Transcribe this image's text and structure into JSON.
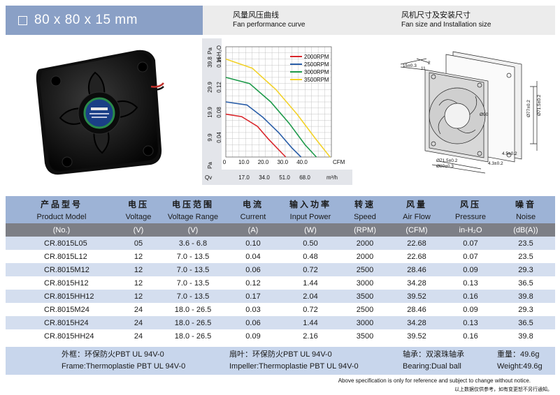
{
  "header": {
    "title": "80 x 80 x 15 mm",
    "curve_cn": "风量风压曲线",
    "curve_en": "Fan performance curve",
    "size_cn": "风机尺寸及安装尺寸",
    "size_en": "Fan size and Installation size"
  },
  "chart_data": {
    "type": "line",
    "xlabel": "CFM",
    "x2label": "m³/h",
    "x2prefix": "Qv",
    "ylabel_left": "Pa",
    "ylabel_right": "in-H₂O",
    "xticks": [
      "0",
      "10.0",
      "20.0",
      "30.0",
      "40.0"
    ],
    "x2ticks": [
      "17.0",
      "34.0",
      "51.0",
      "68.0"
    ],
    "yticks_pa": [
      "9.9",
      "19.9",
      "29.9",
      "39.8"
    ],
    "yticks_h2o": [
      "0.04",
      "0.08",
      "0.12",
      "0.16"
    ],
    "xlim": [
      0,
      40
    ],
    "ylim": [
      0,
      0.18
    ],
    "series": [
      {
        "name": "2000RPM",
        "color": "#d9262b",
        "x": [
          0,
          6,
          12,
          16,
          20,
          22.7
        ],
        "y": [
          0.07,
          0.066,
          0.05,
          0.03,
          0.012,
          0
        ]
      },
      {
        "name": "2500RPM",
        "color": "#2a5ea8",
        "x": [
          0,
          8,
          14,
          20,
          25,
          28.5
        ],
        "y": [
          0.09,
          0.085,
          0.065,
          0.04,
          0.015,
          0
        ]
      },
      {
        "name": "3000RPM",
        "color": "#1d9a4a",
        "x": [
          0,
          9,
          17,
          24,
          30,
          34.3
        ],
        "y": [
          0.13,
          0.12,
          0.09,
          0.055,
          0.02,
          0
        ]
      },
      {
        "name": "3500RPM",
        "color": "#f2d22a",
        "x": [
          0,
          10,
          19,
          27,
          34,
          39.5
        ],
        "y": [
          0.16,
          0.145,
          0.11,
          0.07,
          0.03,
          0
        ]
      }
    ]
  },
  "drawing": {
    "dims": [
      "15±0.3",
      "2",
      "11",
      "Ø90",
      "Ø71.5±0.2",
      "Ø80±0.3",
      "Ø71.5±0.2",
      "Ø77±0.2",
      "4.5±0.2",
      "4.3±0.2"
    ]
  },
  "table": {
    "headers_cn": [
      "产品型号",
      "电压",
      "电压范围",
      "电流",
      "输入功率",
      "转速",
      "风量",
      "风压",
      "噪音"
    ],
    "headers_en": [
      "Product Model",
      "Voltage",
      "Voltage Range",
      "Current",
      "Input Power",
      "Speed",
      "Air Flow",
      "Pressure",
      "Noise"
    ],
    "units": [
      "(No.)",
      "(V)",
      "(V)",
      "(A)",
      "(W)",
      "(RPM)",
      "(CFM)",
      "in-H₂O",
      "(dB(A))"
    ],
    "rows": [
      [
        "CR.8015L05",
        "05",
        "3.6 - 6.8",
        "0.10",
        "0.50",
        "2000",
        "22.68",
        "0.07",
        "23.5"
      ],
      [
        "CR.8015L12",
        "12",
        "7.0 - 13.5",
        "0.04",
        "0.48",
        "2000",
        "22.68",
        "0.07",
        "23.5"
      ],
      [
        "CR.8015M12",
        "12",
        "7.0 - 13.5",
        "0.06",
        "0.72",
        "2500",
        "28.46",
        "0.09",
        "29.3"
      ],
      [
        "CR.8015H12",
        "12",
        "7.0 - 13.5",
        "0.12",
        "1.44",
        "3000",
        "34.28",
        "0.13",
        "36.5"
      ],
      [
        "CR.8015HH12",
        "12",
        "7.0 - 13.5",
        "0.17",
        "2.04",
        "3500",
        "39.52",
        "0.16",
        "39.8"
      ],
      [
        "CR.8015M24",
        "24",
        "18.0 - 26.5",
        "0.03",
        "0.72",
        "2500",
        "28.46",
        "0.09",
        "29.3"
      ],
      [
        "CR.8015H24",
        "24",
        "18.0 - 26.5",
        "0.06",
        "1.44",
        "3000",
        "34.28",
        "0.13",
        "36.5"
      ],
      [
        "CR.8015HH24",
        "24",
        "18.0 - 26.5",
        "0.09",
        "2.16",
        "3500",
        "39.52",
        "0.16",
        "39.8"
      ]
    ]
  },
  "footer": {
    "frame_cn": "外框：环保防火PBT UL 94V-0",
    "frame_en": "Frame:Thermoplastie PBT UL 94V-0",
    "impeller_cn": "扇叶：环保防火PBT UL 94V-0",
    "impeller_en": "Impeller:Thermoplastie PBT UL 94V-0",
    "bearing_cn": "轴承：双滚珠轴承",
    "bearing_en": "Bearing:Dual ball",
    "weight_cn": "重量：49.6g",
    "weight_en": "Weight:49.6g"
  },
  "notes": {
    "en": "Above specification is only for reference and subject to change without notice.",
    "cn": "以上数据仅供参考，如有变更恕不另行通知。"
  }
}
